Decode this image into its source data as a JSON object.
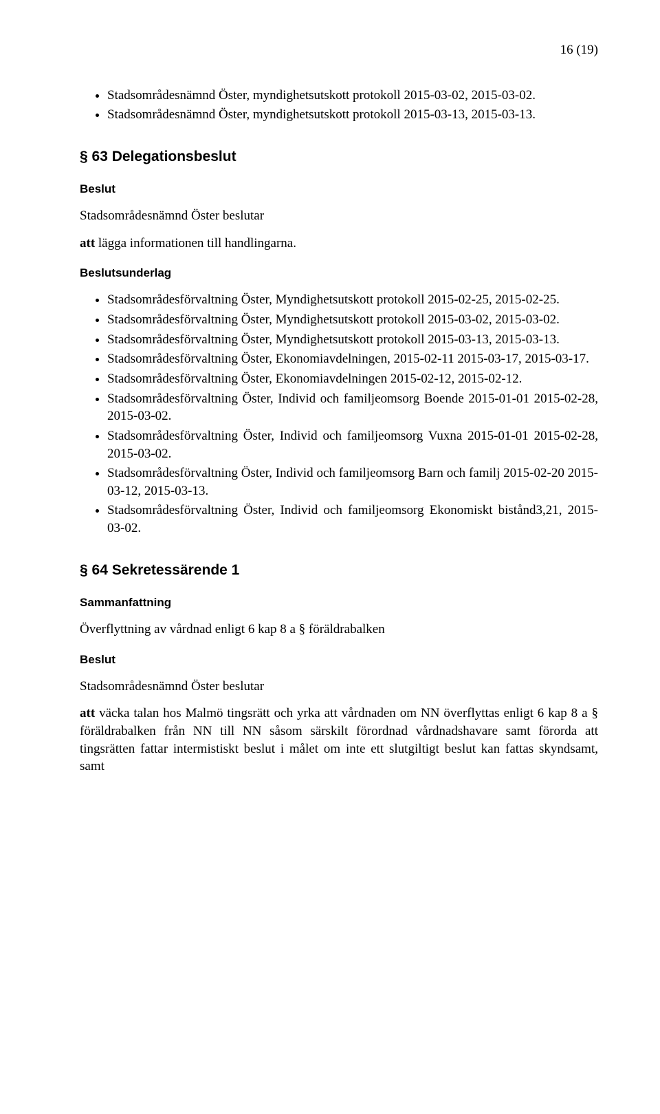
{
  "page_number": "16 (19)",
  "top_list": [
    "Stadsområdesnämnd Öster, myndighetsutskott protokoll 2015-03-02, 2015-03-02.",
    "Stadsområdesnämnd Öster, myndighetsutskott protokoll 2015-03-13, 2015-03-13."
  ],
  "section63": {
    "title": "§ 63 Delegationsbeslut",
    "beslut_label": "Beslut",
    "beslut_text": "Stadsområdesnämnd Öster beslutar",
    "att_text": "att lägga informationen till handlingarna.",
    "underlag_label": "Beslutsunderlag",
    "items": [
      "Stadsområdesförvaltning Öster, Myndighetsutskott protokoll 2015-02-25, 2015-02-25.",
      "Stadsområdesförvaltning Öster, Myndighetsutskott protokoll 2015-03-02, 2015-03-02.",
      "Stadsområdesförvaltning Öster, Myndighetsutskott protokoll 2015-03-13, 2015-03-13.",
      "Stadsområdesförvaltning Öster, Ekonomiavdelningen, 2015-02-11 2015-03-17, 2015-03-17.",
      "Stadsområdesförvaltning Öster, Ekonomiavdelningen 2015-02-12, 2015-02-12.",
      "Stadsområdesförvaltning Öster, Individ och familjeomsorg Boende 2015-01-01 2015-02-28, 2015-03-02.",
      "Stadsområdesförvaltning Öster, Individ och familjeomsorg Vuxna 2015-01-01 2015-02-28, 2015-03-02.",
      "Stadsområdesförvaltning Öster, Individ och familjeomsorg Barn och familj 2015-02-20 2015-03-12, 2015-03-13.",
      "Stadsområdesförvaltning Öster, Individ och familjeomsorg Ekonomiskt bistånd3,21, 2015-03-02."
    ]
  },
  "section64": {
    "title": "§ 64 Sekretessärende 1",
    "sammanfattning_label": "Sammanfattning",
    "sammanfattning_text": "Överflyttning av vårdnad enligt 6 kap 8 a § föräldrabalken",
    "beslut_label": "Beslut",
    "beslut_text": "Stadsområdesnämnd Öster beslutar",
    "att_text": "att väcka talan hos Malmö tingsrätt och yrka att vårdnaden om NN överflyttas enligt 6 kap 8 a § föräldrabalken från NN till NN såsom särskilt förordnad vårdnadshavare samt förorda att tingsrätten fattar intermistiskt beslut i målet om inte ett slutgiltigt beslut kan fattas skyndsamt, samt"
  }
}
